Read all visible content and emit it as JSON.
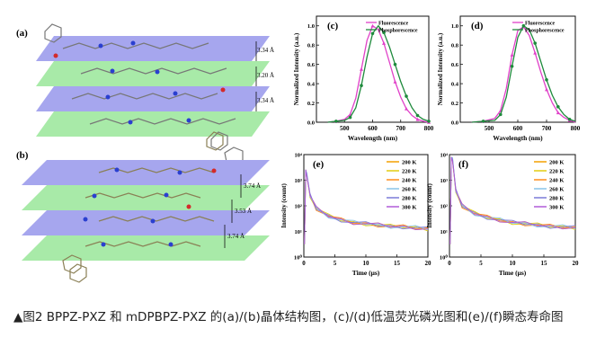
{
  "panels": {
    "a": {
      "label": "(a)",
      "distances": [
        "3.34 Å",
        "3.20 Å",
        "3.34 Å"
      ]
    },
    "b": {
      "label": "(b)",
      "distances": [
        "3.74 Å",
        "3.53 Å",
        "3.74 Å"
      ]
    }
  },
  "colors": {
    "fluorescence": "#e040c8",
    "phosphorescence": "#1e8a3c",
    "plane_blue": "#a6a6ee",
    "plane_green": "#a8eaa8"
  },
  "chart_data": [
    {
      "type": "line",
      "panel_label": "(c)",
      "xlabel": "Wavelength (nm)",
      "ylabel": "Normalized Intensity (a.u.)",
      "xlim": [
        400,
        800
      ],
      "ylim": [
        0,
        1.1
      ],
      "xticks": [
        500,
        600,
        700,
        800
      ],
      "yticks": [
        0.0,
        0.2,
        0.4,
        0.6,
        0.8,
        1.0
      ],
      "legend": [
        "Fluorescence",
        "Phosphorescence"
      ],
      "series": [
        {
          "name": "Fluorescence",
          "x": [
            440,
            470,
            500,
            520,
            540,
            560,
            580,
            600,
            620,
            640,
            660,
            680,
            700,
            720,
            740,
            760,
            780,
            800
          ],
          "y": [
            0,
            0.01,
            0.03,
            0.08,
            0.25,
            0.55,
            0.85,
            1.0,
            0.96,
            0.82,
            0.62,
            0.42,
            0.26,
            0.14,
            0.07,
            0.03,
            0.01,
            0
          ]
        },
        {
          "name": "Phosphorescence",
          "x": [
            440,
            470,
            500,
            520,
            540,
            560,
            580,
            600,
            620,
            640,
            660,
            680,
            700,
            720,
            740,
            760,
            780,
            800
          ],
          "y": [
            0,
            0.01,
            0.02,
            0.05,
            0.15,
            0.38,
            0.68,
            0.92,
            1.0,
            0.93,
            0.78,
            0.6,
            0.42,
            0.27,
            0.15,
            0.07,
            0.03,
            0.01
          ]
        }
      ]
    },
    {
      "type": "line",
      "panel_label": "(d)",
      "xlabel": "Wavelength (nm)",
      "ylabel": "Normalized Intensity (a.u.)",
      "xlim": [
        400,
        800
      ],
      "ylim": [
        0,
        1.1
      ],
      "xticks": [
        500,
        600,
        700,
        800
      ],
      "yticks": [
        0.0,
        0.2,
        0.4,
        0.6,
        0.8,
        1.0
      ],
      "legend": [
        "Fluorescence",
        "Phosphorescence"
      ],
      "series": [
        {
          "name": "Fluorescence",
          "x": [
            440,
            480,
            520,
            540,
            560,
            580,
            600,
            620,
            640,
            660,
            680,
            700,
            720,
            740,
            760,
            780,
            800
          ],
          "y": [
            0,
            0.01,
            0.04,
            0.12,
            0.35,
            0.7,
            0.95,
            0.99,
            0.9,
            0.72,
            0.52,
            0.34,
            0.2,
            0.1,
            0.05,
            0.02,
            0
          ]
        },
        {
          "name": "Phosphorescence",
          "x": [
            440,
            480,
            520,
            540,
            560,
            580,
            600,
            620,
            640,
            660,
            680,
            700,
            720,
            740,
            760,
            780,
            800
          ],
          "y": [
            0,
            0.01,
            0.02,
            0.08,
            0.26,
            0.58,
            0.88,
            1.0,
            0.96,
            0.82,
            0.63,
            0.44,
            0.28,
            0.16,
            0.08,
            0.03,
            0.01
          ]
        }
      ]
    },
    {
      "type": "line",
      "panel_label": "(e)",
      "xlabel": "Time (μs)",
      "ylabel": "Intensity (count)",
      "xlim": [
        0,
        20
      ],
      "ylim_exponent": [
        0,
        4
      ],
      "xticks": [
        0,
        5,
        10,
        15,
        20
      ],
      "ytick_labels": [
        "10⁰",
        "10¹",
        "10²",
        "10³",
        "10⁴"
      ],
      "legend": [
        "200 K",
        "220 K",
        "240 K",
        "260 K",
        "280 K",
        "300 K"
      ],
      "series": [
        {
          "name": "200 K",
          "color": "#f4a000",
          "t": [
            0.5,
            1,
            2,
            4,
            6,
            8,
            10,
            12,
            14,
            16,
            18,
            20
          ],
          "log10_count": [
            3.2,
            2.4,
            1.9,
            1.6,
            1.45,
            1.35,
            1.3,
            1.25,
            1.2,
            1.18,
            1.15,
            1.1
          ]
        },
        {
          "name": "220 K",
          "color": "#e2cc10",
          "t": [
            0.5,
            1,
            2,
            4,
            6,
            8,
            10,
            12,
            14,
            16,
            18,
            20
          ],
          "log10_count": [
            3.2,
            2.4,
            1.9,
            1.6,
            1.45,
            1.35,
            1.3,
            1.25,
            1.2,
            1.18,
            1.15,
            1.1
          ]
        },
        {
          "name": "240 K",
          "color": "#ff8c1a",
          "t": [
            0.5,
            1,
            2,
            4,
            6,
            8,
            10,
            12,
            14,
            16,
            18,
            20
          ],
          "log10_count": [
            3.2,
            2.4,
            1.9,
            1.6,
            1.45,
            1.35,
            1.3,
            1.25,
            1.2,
            1.18,
            1.15,
            1.1
          ]
        },
        {
          "name": "260 K",
          "color": "#88c4e8",
          "t": [
            0.5,
            1,
            2,
            4,
            6,
            8,
            10,
            12,
            14,
            16,
            18,
            20
          ],
          "log10_count": [
            3.2,
            2.4,
            1.9,
            1.6,
            1.45,
            1.35,
            1.3,
            1.25,
            1.2,
            1.18,
            1.15,
            1.1
          ]
        },
        {
          "name": "280 K",
          "color": "#7a7ad8",
          "t": [
            0.5,
            1,
            2,
            4,
            6,
            8,
            10,
            12,
            14,
            16,
            18,
            20
          ],
          "log10_count": [
            3.2,
            2.4,
            1.9,
            1.6,
            1.45,
            1.35,
            1.3,
            1.25,
            1.2,
            1.18,
            1.15,
            1.1
          ]
        },
        {
          "name": "300 K",
          "color": "#b05ad8",
          "t": [
            0.5,
            1,
            2,
            4,
            6,
            8,
            10,
            12,
            14,
            16,
            18,
            20
          ],
          "log10_count": [
            3.2,
            2.4,
            1.9,
            1.6,
            1.45,
            1.35,
            1.3,
            1.25,
            1.2,
            1.18,
            1.15,
            1.1
          ]
        }
      ]
    },
    {
      "type": "line",
      "panel_label": "(f)",
      "xlabel": "Time (μs)",
      "ylabel": "Intensity (count)",
      "xlim": [
        0,
        20
      ],
      "ylim_exponent": [
        0,
        4
      ],
      "xticks": [
        0,
        5,
        10,
        15,
        20
      ],
      "ytick_labels": [
        "10⁰",
        "10¹",
        "10²",
        "10³",
        "10⁴"
      ],
      "legend": [
        "200 K",
        "220 K",
        "240 K",
        "260 K",
        "280 K",
        "300 K"
      ],
      "series": [
        {
          "name": "200 K",
          "color": "#f4a000",
          "t": [
            0.5,
            1,
            2,
            4,
            6,
            8,
            10,
            12,
            14,
            16,
            18,
            20
          ],
          "log10_count": [
            3.8,
            2.6,
            2.0,
            1.7,
            1.55,
            1.45,
            1.35,
            1.3,
            1.25,
            1.2,
            1.18,
            1.15
          ]
        },
        {
          "name": "220 K",
          "color": "#e2cc10",
          "t": [
            0.5,
            1,
            2,
            4,
            6,
            8,
            10,
            12,
            14,
            16,
            18,
            20
          ],
          "log10_count": [
            3.8,
            2.6,
            2.0,
            1.7,
            1.55,
            1.45,
            1.35,
            1.3,
            1.25,
            1.2,
            1.18,
            1.15
          ]
        },
        {
          "name": "240 K",
          "color": "#ff8c1a",
          "t": [
            0.5,
            1,
            2,
            4,
            6,
            8,
            10,
            12,
            14,
            16,
            18,
            20
          ],
          "log10_count": [
            3.8,
            2.6,
            2.0,
            1.7,
            1.55,
            1.45,
            1.35,
            1.3,
            1.25,
            1.2,
            1.18,
            1.15
          ]
        },
        {
          "name": "260 K",
          "color": "#88c4e8",
          "t": [
            0.5,
            1,
            2,
            4,
            6,
            8,
            10,
            12,
            14,
            16,
            18,
            20
          ],
          "log10_count": [
            3.8,
            2.6,
            2.0,
            1.7,
            1.55,
            1.45,
            1.35,
            1.3,
            1.25,
            1.2,
            1.18,
            1.15
          ]
        },
        {
          "name": "280 K",
          "color": "#7a7ad8",
          "t": [
            0.5,
            1,
            2,
            4,
            6,
            8,
            10,
            12,
            14,
            16,
            18,
            20
          ],
          "log10_count": [
            3.8,
            2.6,
            2.0,
            1.7,
            1.55,
            1.45,
            1.35,
            1.3,
            1.25,
            1.2,
            1.18,
            1.15
          ]
        },
        {
          "name": "300 K",
          "color": "#b05ad8",
          "t": [
            0.5,
            1,
            2,
            4,
            6,
            8,
            10,
            12,
            14,
            16,
            18,
            20
          ],
          "log10_count": [
            3.8,
            2.6,
            2.0,
            1.7,
            1.55,
            1.45,
            1.35,
            1.3,
            1.25,
            1.2,
            1.18,
            1.15
          ]
        }
      ]
    }
  ],
  "caption": "▲图2 BPPZ-PXZ 和 mDPBPZ-PXZ 的(a)/(b)晶体结构图，(c)/(d)低温荧光磷光图和(e)/(f)瞬态寿命图"
}
